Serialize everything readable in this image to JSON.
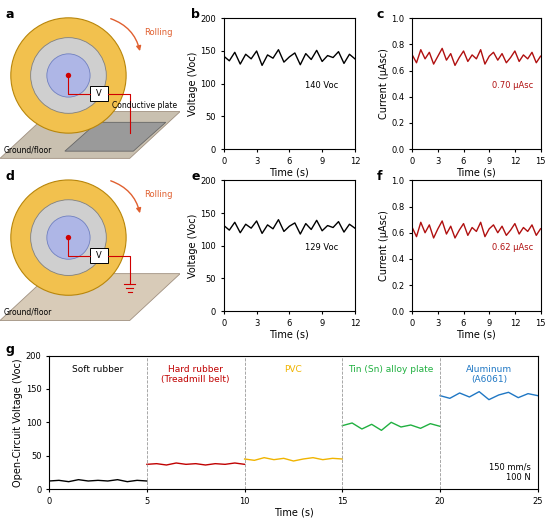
{
  "illustrations": [
    {
      "panel": "a",
      "rolling_label": "Rolling",
      "meter_label": "V",
      "plate_label": "Conductive plate",
      "ground_label": "Ground/floor"
    },
    {
      "panel": "d",
      "rolling_label": "Rolling",
      "meter_label": "V",
      "ground_label": "Ground/floor"
    }
  ],
  "chart_data": [
    {
      "panel": "b",
      "type": "line",
      "xlabel": "Time (s)",
      "ylabel": "Voltage (Voc)",
      "annotation": "140 Voc",
      "xlim": [
        0,
        12
      ],
      "xticks": [
        0,
        3,
        6,
        9,
        12
      ],
      "ylim": [
        0,
        200
      ],
      "yticks": [
        0,
        50,
        100,
        150,
        200
      ],
      "series": [
        {
          "name": null,
          "color": "#000000",
          "x": [
            0,
            0.5,
            1,
            1.5,
            2,
            2.5,
            3,
            3.5,
            4,
            4.5,
            5,
            5.5,
            6,
            6.5,
            7,
            7.5,
            8,
            8.5,
            9,
            9.5,
            10,
            10.5,
            11,
            11.5,
            12
          ],
          "values": [
            142,
            135,
            148,
            130,
            145,
            138,
            150,
            128,
            144,
            139,
            152,
            133,
            141,
            147,
            129,
            146,
            137,
            151,
            134,
            143,
            140,
            149,
            131,
            145,
            138
          ]
        }
      ]
    },
    {
      "panel": "c",
      "type": "line",
      "xlabel": "Time (s)",
      "ylabel": "Current (μAsc)",
      "annotation": "0.70 μAsc",
      "xlim": [
        0,
        15
      ],
      "xticks": [
        0,
        3,
        6,
        9,
        12,
        15
      ],
      "ylim": [
        0,
        1
      ],
      "yticks": [
        {
          "value": 0,
          "label": "0.0"
        },
        0.2,
        0.4,
        0.6,
        0.8,
        {
          "value": 1,
          "label": "1.0"
        }
      ],
      "series": [
        {
          "name": null,
          "color": "#b01010",
          "x": [
            0,
            0.5,
            1,
            1.5,
            2,
            2.5,
            3,
            3.5,
            4,
            4.5,
            5,
            5.5,
            6,
            6.5,
            7,
            7.5,
            8,
            8.5,
            9,
            9.5,
            10,
            10.5,
            11,
            11.5,
            12,
            12.5,
            13,
            13.5,
            14,
            14.5,
            15
          ],
          "values": [
            0.72,
            0.66,
            0.76,
            0.69,
            0.74,
            0.65,
            0.71,
            0.77,
            0.68,
            0.73,
            0.64,
            0.7,
            0.75,
            0.67,
            0.72,
            0.69,
            0.76,
            0.65,
            0.71,
            0.74,
            0.68,
            0.73,
            0.66,
            0.7,
            0.75,
            0.67,
            0.72,
            0.69,
            0.74,
            0.66,
            0.71
          ]
        }
      ]
    },
    {
      "panel": "e",
      "type": "line",
      "xlabel": "Time (s)",
      "ylabel": "Voltage (Voc)",
      "annotation": "129 Voc",
      "xlim": [
        0,
        12
      ],
      "xticks": [
        0,
        3,
        6,
        9,
        12
      ],
      "ylim": [
        0,
        200
      ],
      "yticks": [
        0,
        50,
        100,
        150,
        200
      ],
      "series": [
        {
          "name": null,
          "color": "#000000",
          "x": [
            0,
            0.5,
            1,
            1.5,
            2,
            2.5,
            3,
            3.5,
            4,
            4.5,
            5,
            5.5,
            6,
            6.5,
            7,
            7.5,
            8,
            8.5,
            9,
            9.5,
            10,
            10.5,
            11,
            11.5,
            12
          ],
          "values": [
            131,
            124,
            136,
            120,
            133,
            127,
            138,
            119,
            132,
            126,
            140,
            122,
            130,
            135,
            118,
            134,
            125,
            139,
            123,
            131,
            128,
            137,
            121,
            133,
            127
          ]
        }
      ]
    },
    {
      "panel": "f",
      "type": "line",
      "xlabel": "Time (s)",
      "ylabel": "Current (μAsc)",
      "annotation": "0.62 μAsc",
      "xlim": [
        0,
        15
      ],
      "xticks": [
        0,
        3,
        6,
        9,
        12,
        15
      ],
      "ylim": [
        0,
        1
      ],
      "yticks": [
        {
          "value": 0,
          "label": "0.0"
        },
        0.2,
        0.4,
        0.6,
        0.8,
        {
          "value": 1,
          "label": "1.0"
        }
      ],
      "series": [
        {
          "name": null,
          "color": "#b01010",
          "x": [
            0,
            0.5,
            1,
            1.5,
            2,
            2.5,
            3,
            3.5,
            4,
            4.5,
            5,
            5.5,
            6,
            6.5,
            7,
            7.5,
            8,
            8.5,
            9,
            9.5,
            10,
            10.5,
            11,
            11.5,
            12,
            12.5,
            13,
            13.5,
            14,
            14.5,
            15
          ],
          "values": [
            0.64,
            0.57,
            0.68,
            0.6,
            0.66,
            0.56,
            0.63,
            0.69,
            0.59,
            0.65,
            0.56,
            0.62,
            0.67,
            0.58,
            0.64,
            0.61,
            0.68,
            0.57,
            0.63,
            0.66,
            0.6,
            0.65,
            0.58,
            0.62,
            0.67,
            0.59,
            0.64,
            0.61,
            0.66,
            0.58,
            0.63
          ]
        }
      ]
    },
    {
      "panel": "g",
      "type": "line",
      "xlabel": "Time (s)",
      "ylabel": "Open-Circuit Voltage (Voc)",
      "annotation": "150 mm/s\n100 N",
      "xlim": [
        0,
        25
      ],
      "xticks": [
        0,
        5,
        10,
        15,
        20,
        25
      ],
      "ylim": [
        0,
        200
      ],
      "yticks": [
        0,
        50,
        100,
        150,
        200
      ],
      "series": [
        {
          "name": "Soft rubber",
          "color": "#000000",
          "x": [
            0,
            0.5,
            1,
            1.5,
            2,
            2.5,
            3,
            3.5,
            4,
            4.5,
            5
          ],
          "values": [
            12,
            13,
            11,
            14,
            12,
            13,
            12,
            14,
            11,
            13,
            12
          ]
        },
        {
          "name": "Hard rubber\n(Treadmill belt)",
          "color": "#c00000",
          "x": [
            5,
            5.5,
            6,
            6.5,
            7,
            7.5,
            8,
            8.5,
            9,
            9.5,
            10
          ],
          "values": [
            37,
            38,
            36,
            39,
            37,
            38,
            36,
            38,
            37,
            39,
            37
          ]
        },
        {
          "name": "PVC",
          "color": "#f0b400",
          "x": [
            10,
            10.5,
            11,
            11.5,
            12,
            12.5,
            13,
            13.5,
            14,
            14.5,
            15
          ],
          "values": [
            45,
            43,
            47,
            44,
            46,
            42,
            45,
            47,
            44,
            46,
            45
          ]
        },
        {
          "name": "Tin (Sn) alloy plate",
          "color": "#20b040",
          "x": [
            15,
            15.5,
            16,
            16.5,
            17,
            17.5,
            18,
            18.5,
            19,
            19.5,
            20
          ],
          "values": [
            95,
            99,
            90,
            97,
            88,
            100,
            93,
            96,
            91,
            98,
            94
          ]
        },
        {
          "name": "Aluminum\n(A6061)",
          "color": "#1f77c4",
          "x": [
            20,
            20.5,
            21,
            21.5,
            22,
            22.5,
            23,
            23.5,
            24,
            24.5,
            25
          ],
          "values": [
            140,
            136,
            144,
            138,
            146,
            134,
            141,
            145,
            137,
            143,
            140
          ]
        }
      ]
    }
  ]
}
